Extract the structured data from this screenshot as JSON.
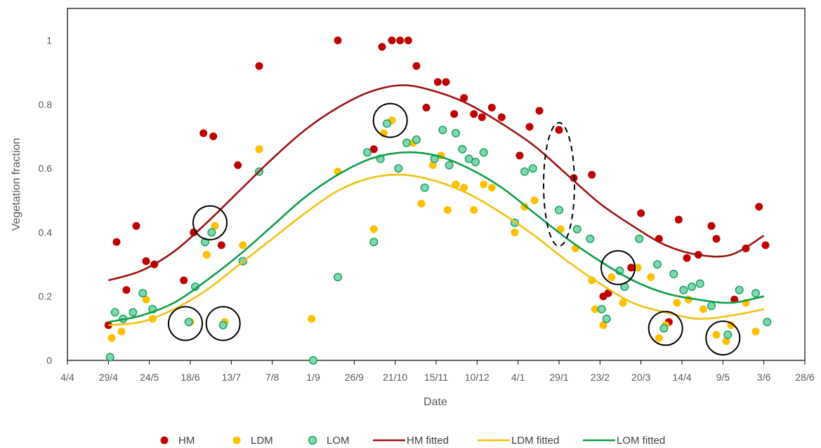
{
  "chart_data": {
    "type": "scatter",
    "title": "",
    "xlabel": "Date",
    "ylabel": "Vegetation fraction",
    "x_ticks": [
      "4/4",
      "29/4",
      "24/5",
      "18/6",
      "13/7",
      "7/8",
      "1/9",
      "26/9",
      "21/10",
      "15/11",
      "10/12",
      "4/1",
      "29/1",
      "23/2",
      "20/3",
      "14/4",
      "9/5",
      "3/6",
      "28/6"
    ],
    "x_range": [
      "4/4",
      "28/6"
    ],
    "y_ticks": [
      0,
      0.2,
      0.4,
      0.6,
      0.8,
      1
    ],
    "ylim": [
      0,
      1.1
    ],
    "grid": false,
    "legend_position": "bottom",
    "colors": {
      "HM": "#c00000",
      "LDM": "#ffc000",
      "LOM": "#7fd6b0",
      "LOM_edge": "#12a05a",
      "HM fitted": "#a01010",
      "LDM fitted": "#f2c10f",
      "LOM fitted": "#0f9d49"
    },
    "series": [
      {
        "name": "HM",
        "kind": "points",
        "points": [
          [
            "29/4",
            0.11
          ],
          [
            "4/5",
            0.37
          ],
          [
            "10/5",
            0.22
          ],
          [
            "16/5",
            0.42
          ],
          [
            "22/5",
            0.31
          ],
          [
            "27/5",
            0.3
          ],
          [
            "14/6",
            0.25
          ],
          [
            "20/6",
            0.4
          ],
          [
            "26/6",
            0.71
          ],
          [
            "2/7",
            0.7
          ],
          [
            "7/7",
            0.36
          ],
          [
            "17/7",
            0.61
          ],
          [
            "30/7",
            0.92
          ],
          [
            "16/9",
            1.0
          ],
          [
            "8/10",
            0.66
          ],
          [
            "13/10",
            0.98
          ],
          [
            "19/10",
            1.0
          ],
          [
            "24/10",
            1.0
          ],
          [
            "29/10",
            1.0
          ],
          [
            "3/11",
            0.92
          ],
          [
            "9/11",
            0.79
          ],
          [
            "16/11",
            0.87
          ],
          [
            "21/11",
            0.87
          ],
          [
            "26/11",
            0.77
          ],
          [
            "2/12",
            0.82
          ],
          [
            "8/12",
            0.77
          ],
          [
            "13/12",
            0.76
          ],
          [
            "19/12",
            0.79
          ],
          [
            "25/12",
            0.76
          ],
          [
            "5/1",
            0.64
          ],
          [
            "11/1",
            0.73
          ],
          [
            "17/1",
            0.78
          ],
          [
            "29/1",
            0.72
          ],
          [
            "7/2",
            0.57
          ],
          [
            "18/2",
            0.58
          ],
          [
            "25/2",
            0.2
          ],
          [
            "28/2",
            0.21
          ],
          [
            "14/3",
            0.29
          ],
          [
            "20/3",
            0.46
          ],
          [
            "31/3",
            0.38
          ],
          [
            "6/4",
            0.12
          ],
          [
            "12/4",
            0.44
          ],
          [
            "17/4",
            0.32
          ],
          [
            "24/4",
            0.33
          ],
          [
            "2/5",
            0.42
          ],
          [
            "5/5",
            0.38
          ],
          [
            "16/5",
            0.19
          ],
          [
            "23/5",
            0.35
          ],
          [
            "31/5",
            0.48
          ],
          [
            "4/6",
            0.36
          ]
        ]
      },
      {
        "name": "LDM",
        "kind": "points",
        "points": [
          [
            "1/5",
            0.07
          ],
          [
            "7/5",
            0.09
          ],
          [
            "22/5",
            0.19
          ],
          [
            "26/5",
            0.13
          ],
          [
            "18/6",
            0.12
          ],
          [
            "28/6",
            0.33
          ],
          [
            "3/7",
            0.42
          ],
          [
            "9/7",
            0.12
          ],
          [
            "20/7",
            0.36
          ],
          [
            "30/7",
            0.66
          ],
          [
            "31/8",
            0.13
          ],
          [
            "16/9",
            0.59
          ],
          [
            "8/10",
            0.41
          ],
          [
            "14/10",
            0.71
          ],
          [
            "19/10",
            0.75
          ],
          [
            "1/11",
            0.68
          ],
          [
            "6/11",
            0.49
          ],
          [
            "13/11",
            0.61
          ],
          [
            "18/11",
            0.64
          ],
          [
            "22/11",
            0.47
          ],
          [
            "27/11",
            0.55
          ],
          [
            "2/12",
            0.54
          ],
          [
            "8/12",
            0.47
          ],
          [
            "14/12",
            0.55
          ],
          [
            "19/12",
            0.54
          ],
          [
            "2/1",
            0.4
          ],
          [
            "8/1",
            0.48
          ],
          [
            "14/1",
            0.5
          ],
          [
            "30/1",
            0.41
          ],
          [
            "8/2",
            0.35
          ],
          [
            "18/2",
            0.25
          ],
          [
            "20/2",
            0.16
          ],
          [
            "25/2",
            0.11
          ],
          [
            "2/3",
            0.26
          ],
          [
            "9/3",
            0.18
          ],
          [
            "18/3",
            0.29
          ],
          [
            "26/3",
            0.26
          ],
          [
            "31/3",
            0.07
          ],
          [
            "4/4",
            0.11
          ],
          [
            "11/4",
            0.18
          ],
          [
            "18/4",
            0.19
          ],
          [
            "27/4",
            0.16
          ],
          [
            "5/5",
            0.08
          ],
          [
            "11/5",
            0.06
          ],
          [
            "14/5",
            0.11
          ],
          [
            "23/5",
            0.18
          ],
          [
            "29/5",
            0.09
          ]
        ]
      },
      {
        "name": "LOM",
        "kind": "points",
        "points": [
          [
            "30/4",
            0.01
          ],
          [
            "3/5",
            0.15
          ],
          [
            "8/5",
            0.13
          ],
          [
            "14/5",
            0.15
          ],
          [
            "20/5",
            0.21
          ],
          [
            "26/5",
            0.16
          ],
          [
            "17/6",
            0.12
          ],
          [
            "21/6",
            0.23
          ],
          [
            "27/6",
            0.37
          ],
          [
            "1/7",
            0.4
          ],
          [
            "8/7",
            0.11
          ],
          [
            "20/7",
            0.31
          ],
          [
            "30/7",
            0.59
          ],
          [
            "1/9",
            0.0
          ],
          [
            "16/9",
            0.26
          ],
          [
            "4/10",
            0.65
          ],
          [
            "8/10",
            0.37
          ],
          [
            "12/10",
            0.63
          ],
          [
            "16/10",
            0.74
          ],
          [
            "23/10",
            0.6
          ],
          [
            "28/10",
            0.68
          ],
          [
            "3/11",
            0.69
          ],
          [
            "8/11",
            0.54
          ],
          [
            "14/11",
            0.63
          ],
          [
            "19/11",
            0.72
          ],
          [
            "23/11",
            0.61
          ],
          [
            "27/11",
            0.71
          ],
          [
            "1/12",
            0.66
          ],
          [
            "5/12",
            0.63
          ],
          [
            "9/12",
            0.62
          ],
          [
            "14/12",
            0.65
          ],
          [
            "2/1",
            0.43
          ],
          [
            "8/1",
            0.59
          ],
          [
            "13/1",
            0.6
          ],
          [
            "29/1",
            0.47
          ],
          [
            "9/2",
            0.41
          ],
          [
            "17/2",
            0.38
          ],
          [
            "24/2",
            0.16
          ],
          [
            "27/2",
            0.13
          ],
          [
            "7/3",
            0.28
          ],
          [
            "10/3",
            0.23
          ],
          [
            "19/3",
            0.38
          ],
          [
            "30/3",
            0.3
          ],
          [
            "3/4",
            0.1
          ],
          [
            "9/4",
            0.27
          ],
          [
            "15/4",
            0.22
          ],
          [
            "20/4",
            0.23
          ],
          [
            "25/4",
            0.24
          ],
          [
            "2/5",
            0.17
          ],
          [
            "12/5",
            0.08
          ],
          [
            "19/5",
            0.22
          ],
          [
            "29/5",
            0.21
          ],
          [
            "5/6",
            0.12
          ]
        ]
      },
      {
        "name": "HM fitted",
        "kind": "line",
        "points": [
          [
            "29/4",
            0.25
          ],
          [
            "19/5",
            0.28
          ],
          [
            "8/6",
            0.34
          ],
          [
            "28/6",
            0.43
          ],
          [
            "18/7",
            0.53
          ],
          [
            "7/8",
            0.63
          ],
          [
            "27/8",
            0.72
          ],
          [
            "16/9",
            0.79
          ],
          [
            "6/10",
            0.84
          ],
          [
            "26/10",
            0.86
          ],
          [
            "15/11",
            0.84
          ],
          [
            "5/12",
            0.8
          ],
          [
            "25/12",
            0.74
          ],
          [
            "14/1",
            0.67
          ],
          [
            "3/2",
            0.58
          ],
          [
            "23/2",
            0.49
          ],
          [
            "15/3",
            0.42
          ],
          [
            "4/4",
            0.36
          ],
          [
            "24/4",
            0.33
          ],
          [
            "14/5",
            0.33
          ],
          [
            "3/6",
            0.39
          ]
        ]
      },
      {
        "name": "LDM fitted",
        "kind": "line",
        "points": [
          [
            "29/4",
            0.11
          ],
          [
            "19/5",
            0.12
          ],
          [
            "8/6",
            0.16
          ],
          [
            "28/6",
            0.22
          ],
          [
            "18/7",
            0.3
          ],
          [
            "7/8",
            0.38
          ],
          [
            "27/8",
            0.46
          ],
          [
            "16/9",
            0.53
          ],
          [
            "6/10",
            0.57
          ],
          [
            "26/10",
            0.58
          ],
          [
            "15/11",
            0.56
          ],
          [
            "5/12",
            0.52
          ],
          [
            "25/12",
            0.46
          ],
          [
            "14/1",
            0.39
          ],
          [
            "3/2",
            0.31
          ],
          [
            "23/2",
            0.24
          ],
          [
            "15/3",
            0.18
          ],
          [
            "4/4",
            0.15
          ],
          [
            "24/4",
            0.13
          ],
          [
            "14/5",
            0.14
          ],
          [
            "3/6",
            0.16
          ]
        ]
      },
      {
        "name": "LOM fitted",
        "kind": "line",
        "points": [
          [
            "29/4",
            0.12
          ],
          [
            "19/5",
            0.14
          ],
          [
            "8/6",
            0.18
          ],
          [
            "28/6",
            0.25
          ],
          [
            "18/7",
            0.33
          ],
          [
            "7/8",
            0.42
          ],
          [
            "27/8",
            0.51
          ],
          [
            "16/9",
            0.58
          ],
          [
            "6/10",
            0.63
          ],
          [
            "26/10",
            0.65
          ],
          [
            "15/11",
            0.64
          ],
          [
            "5/12",
            0.6
          ],
          [
            "25/12",
            0.54
          ],
          [
            "14/1",
            0.46
          ],
          [
            "3/2",
            0.38
          ],
          [
            "23/2",
            0.31
          ],
          [
            "15/3",
            0.25
          ],
          [
            "4/4",
            0.21
          ],
          [
            "24/4",
            0.19
          ],
          [
            "14/5",
            0.18
          ],
          [
            "3/6",
            0.2
          ]
        ]
      }
    ],
    "annotations": [
      {
        "shape": "circle",
        "at": [
          "30/6",
          0.43
        ]
      },
      {
        "shape": "circle",
        "at": [
          "18/10",
          0.75
        ]
      },
      {
        "shape": "circle",
        "at": [
          "15/6",
          0.115
        ]
      },
      {
        "shape": "circle",
        "at": [
          "8/7",
          0.115
        ]
      },
      {
        "shape": "circle",
        "at": [
          "6/3",
          0.29
        ]
      },
      {
        "shape": "circle",
        "at": [
          "4/4",
          0.1
        ]
      },
      {
        "shape": "circle",
        "at": [
          "9/5",
          0.07
        ]
      },
      {
        "shape": "dashed-ellipse",
        "at": [
          "29/1",
          0.55
        ]
      }
    ]
  },
  "legend": {
    "items": [
      {
        "label": "HM",
        "kind": "marker"
      },
      {
        "label": "LDM",
        "kind": "marker"
      },
      {
        "label": "LOM",
        "kind": "marker"
      },
      {
        "label": "HM fitted",
        "kind": "line"
      },
      {
        "label": "LDM fitted",
        "kind": "line"
      },
      {
        "label": "LOM fitted",
        "kind": "line"
      }
    ]
  }
}
